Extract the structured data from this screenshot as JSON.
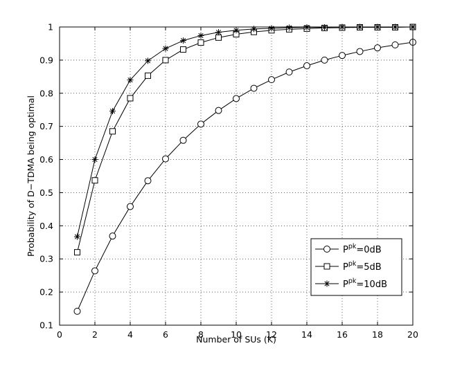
{
  "chart_data": {
    "type": "line",
    "title": "",
    "xlabel": "Number of SUs (K)",
    "ylabel": "Probability of D−TDMA being optimal",
    "xlim": [
      0,
      20
    ],
    "ylim": [
      0.1,
      1
    ],
    "xticks": [
      "0",
      "2",
      "4",
      "6",
      "8",
      "10",
      "12",
      "14",
      "16",
      "18",
      "20"
    ],
    "yticks": [
      "0.1",
      "0.2",
      "0.3",
      "0.4",
      "0.5",
      "0.6",
      "0.7",
      "0.8",
      "0.9",
      "1"
    ],
    "grid": true,
    "legend_position": "lower-right",
    "series": [
      {
        "name": "P^pk=0dB",
        "label_base": "P",
        "label_sup": "pk",
        "label_rest": "=0dB",
        "marker": "circle",
        "x": [
          1,
          2,
          3,
          4,
          5,
          6,
          7,
          8,
          9,
          10,
          11,
          12,
          13,
          14,
          15,
          16,
          17,
          18,
          19,
          20
        ],
        "y": [
          0.142,
          0.264,
          0.369,
          0.458,
          0.536,
          0.602,
          0.658,
          0.707,
          0.748,
          0.784,
          0.815,
          0.841,
          0.864,
          0.883,
          0.9,
          0.914,
          0.926,
          0.937,
          0.946,
          0.954
        ]
      },
      {
        "name": "P^pk=5dB",
        "label_base": "P",
        "label_sup": "pk",
        "label_rest": "=5dB",
        "marker": "square",
        "x": [
          1,
          2,
          3,
          4,
          5,
          6,
          7,
          8,
          9,
          10,
          11,
          12,
          13,
          14,
          15,
          16,
          17,
          18,
          19,
          20
        ],
        "y": [
          0.32,
          0.537,
          0.685,
          0.785,
          0.853,
          0.9,
          0.932,
          0.953,
          0.968,
          0.978,
          0.985,
          0.99,
          0.993,
          0.995,
          0.997,
          0.998,
          0.999,
          0.999,
          0.999,
          1.0
        ]
      },
      {
        "name": "P^pk=10dB",
        "label_base": "P",
        "label_sup": "pk",
        "label_rest": "=10dB",
        "marker": "star",
        "x": [
          1,
          2,
          3,
          4,
          5,
          6,
          7,
          8,
          9,
          10,
          11,
          12,
          13,
          14,
          15,
          16,
          17,
          18,
          19,
          20
        ],
        "y": [
          0.367,
          0.6,
          0.746,
          0.84,
          0.898,
          0.935,
          0.959,
          0.974,
          0.984,
          0.99,
          0.994,
          0.996,
          0.998,
          0.999,
          0.999,
          1.0,
          1.0,
          1.0,
          1.0,
          1.0
        ]
      }
    ]
  }
}
